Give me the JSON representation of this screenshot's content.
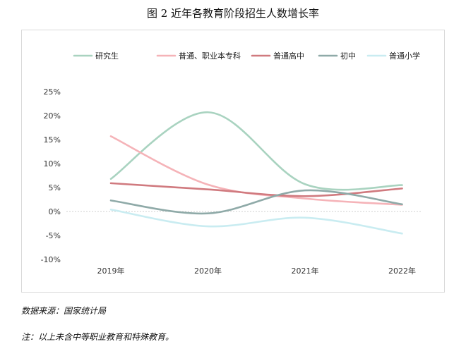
{
  "title": "图 2 近年各教育阶段招生人数增长率",
  "source_note": "数据来源：国家统计局",
  "remark_note": "注：以上未含中等职业教育和特殊教育。",
  "chart_data": {
    "type": "line",
    "smooth": true,
    "categories": [
      "2019年",
      "2020年",
      "2021年",
      "2022年"
    ],
    "ylim": [
      -10,
      25
    ],
    "yticks": [
      -10,
      -5,
      0,
      5,
      10,
      15,
      20,
      25
    ],
    "ytick_labels": [
      "-10%",
      "-5%",
      "0%",
      "5%",
      "10%",
      "15%",
      "20%",
      "25%"
    ],
    "grid": false,
    "zero_line": "dotted",
    "legend_position": "top",
    "series": [
      {
        "name": "研究生",
        "color": "#a9d3c0",
        "values": [
          6.8,
          20.7,
          5.7,
          5.5
        ]
      },
      {
        "name": "普通、职业本专科",
        "color": "#f5b3b8",
        "values": [
          15.7,
          5.6,
          2.7,
          1.4
        ]
      },
      {
        "name": "普通高中",
        "color": "#d07a7f",
        "values": [
          5.9,
          4.6,
          3.2,
          4.8
        ]
      },
      {
        "name": "初中",
        "color": "#8faaa8",
        "values": [
          2.3,
          -0.4,
          4.4,
          1.5
        ]
      },
      {
        "name": "普通小学",
        "color": "#c9ecf1",
        "values": [
          0.4,
          -3.1,
          -1.3,
          -4.6
        ]
      }
    ]
  }
}
